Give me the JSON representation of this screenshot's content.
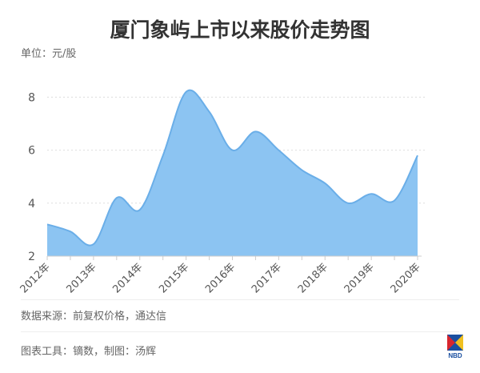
{
  "title": "厦门象屿上市以来股价走势图",
  "unit": "单位：元/股",
  "source": "数据来源：前复权价格，通达信",
  "credit": "图表工具：镝数，制图：汤辉",
  "logo": "NBD",
  "chart_data": {
    "type": "area",
    "x": [
      "2012年",
      "",
      "2013年",
      "",
      "2014年",
      "",
      "2015年",
      "",
      "2016年",
      "",
      "2017年",
      "",
      "2018年",
      "",
      "2019年",
      "",
      "2020年"
    ],
    "tick_labels": [
      "2012年",
      "2013年",
      "2014年",
      "2015年",
      "2016年",
      "2017年",
      "2018年",
      "2019年",
      "2020年"
    ],
    "values": [
      3.2,
      2.93,
      2.45,
      4.2,
      3.75,
      5.8,
      8.2,
      7.45,
      6.0,
      6.7,
      6.0,
      5.25,
      4.75,
      4.0,
      4.35,
      4.1,
      5.8
    ],
    "yticks": [
      2,
      4,
      6,
      8
    ],
    "ylim": [
      2,
      8.4
    ],
    "grid": true,
    "fill_color": "#8cc4f2",
    "line_color": "#6aaee8"
  }
}
